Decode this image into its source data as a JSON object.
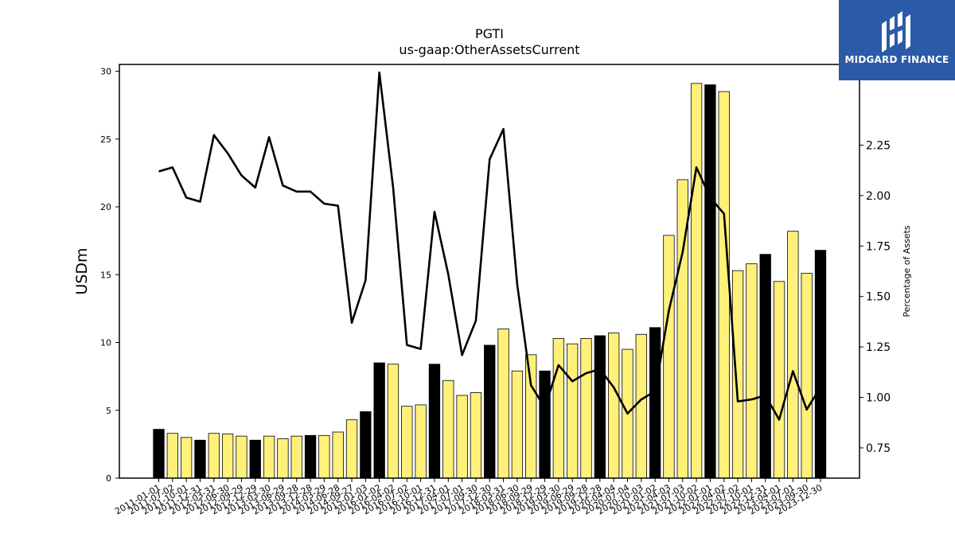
{
  "chart_data": {
    "type": "bar",
    "title": "PGTI",
    "subtitle": "us-gaap:OtherAssetsCurrent",
    "ylabel": "USDm",
    "y2label": "Percentage of Assets",
    "ylim": [
      0,
      30.5
    ],
    "y2lim": [
      0.6,
      2.65
    ],
    "yticks": [
      0,
      5,
      10,
      15,
      20,
      25,
      30
    ],
    "y2ticks": [
      0.75,
      1.0,
      1.25,
      1.5,
      1.75,
      2.0,
      2.25
    ],
    "y2tick_labels": [
      "0.75",
      "1.00",
      "1.25",
      "1.50",
      "1.75",
      "2.00",
      "2.25"
    ],
    "colors": {
      "q4_bar": "#000000",
      "bar": "#fff07a",
      "line": "#000000"
    },
    "categories": [
      "2011-01-01",
      "2011-07-02",
      "2011-10-01",
      "2011-12-31",
      "2012-03-31",
      "2012-06-30",
      "2012-09-29",
      "2012-12-29",
      "2013-03-30",
      "2013-06-29",
      "2013-09-28",
      "2013-12-28",
      "2014-03-29",
      "2014-06-28",
      "2014-09-27",
      "2015-01-03",
      "2016-01-02",
      "2016-04-02",
      "2016-07-02",
      "2016-10-01",
      "2016-12-31",
      "2017-04-01",
      "2017-07-01",
      "2017-09-30",
      "2017-12-30",
      "2018-03-31",
      "2018-06-30",
      "2018-09-29",
      "2018-12-29",
      "2019-03-30",
      "2019-06-29",
      "2019-09-28",
      "2019-12-28",
      "2020-04-04",
      "2020-07-04",
      "2020-10-03",
      "2021-01-02",
      "2021-04-03",
      "2021-07-03",
      "2021-10-02",
      "2022-01-01",
      "2022-04-02",
      "2022-07-02",
      "2022-10-01",
      "2022-12-31",
      "2023-04-01",
      "2023-07-01",
      "2023-09-30",
      "2023-12-30"
    ],
    "xtick_labels": [
      "2011-01-01",
      "2011-07-02",
      "2011-10-01",
      "2011-12-31",
      "2012-03-31",
      "2012-06-30",
      "2012-09-29",
      "2012-12-29",
      "2013-03-30",
      "2013-06-29",
      "2013-09-28",
      "2013-12-28",
      "2014-03-29",
      "2014-06-28",
      "2014-09-27",
      "2015-01-03",
      "2016-01-02",
      "2016-04-02",
      "2016-07-02",
      "2016-10-01",
      "2016-12-31",
      "2017-04-01",
      "2017-07-01",
      "2017-09-30",
      "2017-12-30",
      "2018-03-31",
      "2018-06-30",
      "2018-09-29",
      "2018-12-29",
      "2019-03-30",
      "2019-06-29",
      "2019-09-28",
      "2019-12-28",
      "2020-04-04",
      "2020-07-04",
      "2020-10-03",
      "2021-01-02",
      "2021-04-03",
      "2021-07-03",
      "2021-10-02",
      "2022-01-01",
      "2022-04-02",
      "2022-07-02",
      "2022-10-01",
      "2022-12-31",
      "2023-04-01",
      "2023-07-01",
      "2023-09-30",
      "2023-12-30"
    ],
    "values": [
      3.6,
      3.3,
      3.0,
      2.8,
      3.3,
      3.25,
      3.1,
      2.8,
      3.1,
      2.9,
      3.1,
      3.15,
      3.15,
      3.4,
      4.3,
      4.9,
      8.5,
      8.4,
      5.3,
      5.4,
      8.4,
      7.2,
      6.1,
      6.3,
      9.8,
      11.0,
      7.9,
      9.1,
      7.9,
      10.3,
      9.9,
      10.3,
      10.5,
      10.7,
      9.5,
      10.6,
      11.1,
      17.9,
      22.0,
      29.1,
      29.0,
      28.5,
      15.3,
      15.8,
      16.5,
      14.5,
      18.2,
      15.1,
      16.8
    ],
    "q4_flags": [
      1,
      0,
      0,
      1,
      0,
      0,
      0,
      1,
      0,
      0,
      0,
      1,
      0,
      0,
      0,
      1,
      1,
      0,
      0,
      0,
      1,
      0,
      0,
      0,
      1,
      0,
      0,
      0,
      1,
      0,
      0,
      0,
      1,
      0,
      0,
      0,
      1,
      0,
      0,
      0,
      1,
      0,
      0,
      0,
      1,
      0,
      0,
      0,
      1
    ],
    "line_values": [
      2.12,
      2.14,
      1.99,
      1.97,
      2.3,
      2.21,
      2.1,
      2.04,
      2.29,
      2.05,
      2.02,
      2.02,
      1.96,
      1.95,
      1.37,
      1.58,
      2.61,
      2.04,
      1.26,
      1.24,
      1.92,
      1.61,
      1.21,
      1.38,
      2.18,
      2.33,
      1.56,
      1.06,
      0.95,
      1.16,
      1.08,
      1.12,
      1.14,
      1.05,
      0.92,
      0.99,
      1.03,
      1.43,
      1.72,
      2.14,
      1.99,
      1.91,
      0.98,
      0.99,
      1.01,
      0.89,
      1.13,
      0.94,
      1.05
    ]
  },
  "logo": {
    "text": "MIDGARD FINANCE"
  }
}
